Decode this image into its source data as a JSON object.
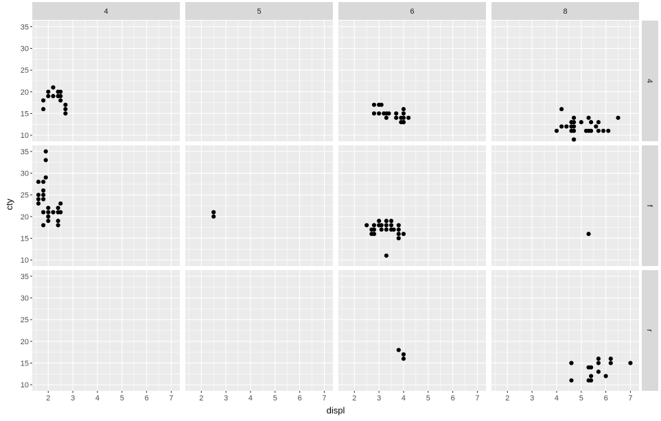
{
  "chart_data": {
    "type": "scatter",
    "xlabel": "displ",
    "ylabel": "cty",
    "xlim": [
      1.35,
      7.35
    ],
    "ylim": [
      8.6,
      36.4
    ],
    "x_ticks": [
      2,
      3,
      4,
      5,
      6,
      7
    ],
    "y_ticks": [
      10,
      15,
      20,
      25,
      30,
      35
    ],
    "facet_cols": [
      "4",
      "5",
      "6",
      "8"
    ],
    "facet_rows": [
      "4",
      "f",
      "r"
    ],
    "colors": {
      "panel": "#ebebeb",
      "strip": "#d9d9d9",
      "grid": "#ffffff",
      "point": "#000000"
    },
    "panels": [
      {
        "row": "4",
        "col": "4",
        "points": [
          [
            1.8,
            18
          ],
          [
            1.8,
            16
          ],
          [
            2.0,
            20
          ],
          [
            2.0,
            19
          ],
          [
            2.2,
            21
          ],
          [
            2.2,
            19
          ],
          [
            2.4,
            20
          ],
          [
            2.4,
            19
          ],
          [
            2.5,
            20
          ],
          [
            2.5,
            19
          ],
          [
            2.5,
            18
          ],
          [
            2.7,
            17
          ],
          [
            2.7,
            16
          ],
          [
            2.7,
            15
          ]
        ]
      },
      {
        "row": "4",
        "col": "5",
        "points": []
      },
      {
        "row": "4",
        "col": "6",
        "points": [
          [
            2.8,
            17
          ],
          [
            2.8,
            15
          ],
          [
            3.0,
            17
          ],
          [
            3.0,
            15
          ],
          [
            3.1,
            17
          ],
          [
            3.2,
            15
          ],
          [
            3.3,
            14
          ],
          [
            3.3,
            15
          ],
          [
            3.4,
            15
          ],
          [
            3.7,
            15
          ],
          [
            3.7,
            14
          ],
          [
            3.9,
            14
          ],
          [
            4.0,
            16
          ],
          [
            4.0,
            15
          ],
          [
            4.0,
            14
          ],
          [
            4.0,
            13
          ],
          [
            4.2,
            14
          ],
          [
            3.9,
            13
          ],
          [
            4.0,
            13
          ]
        ]
      },
      {
        "row": "4",
        "col": "8",
        "points": [
          [
            4.0,
            11
          ],
          [
            4.2,
            16
          ],
          [
            4.2,
            12
          ],
          [
            4.4,
            12
          ],
          [
            4.6,
            13
          ],
          [
            4.6,
            12
          ],
          [
            4.6,
            11
          ],
          [
            4.7,
            14
          ],
          [
            4.7,
            13
          ],
          [
            4.7,
            12
          ],
          [
            4.7,
            11
          ],
          [
            4.7,
            9
          ],
          [
            4.7,
            9
          ],
          [
            5.0,
            13
          ],
          [
            5.2,
            11
          ],
          [
            5.3,
            14
          ],
          [
            5.3,
            11
          ],
          [
            5.4,
            13
          ],
          [
            5.4,
            11
          ],
          [
            5.6,
            12
          ],
          [
            5.7,
            13
          ],
          [
            5.7,
            11
          ],
          [
            5.9,
            11
          ],
          [
            6.1,
            11
          ],
          [
            6.5,
            14
          ]
        ]
      },
      {
        "row": "f",
        "col": "4",
        "points": [
          [
            1.6,
            28
          ],
          [
            1.6,
            24
          ],
          [
            1.6,
            25
          ],
          [
            1.6,
            23
          ],
          [
            1.8,
            28
          ],
          [
            1.8,
            26
          ],
          [
            1.8,
            25
          ],
          [
            1.8,
            24
          ],
          [
            1.8,
            21
          ],
          [
            1.8,
            18
          ],
          [
            1.9,
            35
          ],
          [
            1.9,
            33
          ],
          [
            1.9,
            29
          ],
          [
            2.0,
            22
          ],
          [
            2.0,
            21
          ],
          [
            2.0,
            20
          ],
          [
            2.0,
            19
          ],
          [
            2.2,
            21
          ],
          [
            2.4,
            22
          ],
          [
            2.4,
            21
          ],
          [
            2.4,
            19
          ],
          [
            2.4,
            18
          ],
          [
            2.5,
            23
          ],
          [
            2.5,
            21
          ]
        ]
      },
      {
        "row": "f",
        "col": "5",
        "points": [
          [
            2.5,
            21
          ],
          [
            2.5,
            20
          ]
        ]
      },
      {
        "row": "f",
        "col": "6",
        "points": [
          [
            2.5,
            18
          ],
          [
            2.7,
            17
          ],
          [
            2.7,
            16
          ],
          [
            2.8,
            18
          ],
          [
            2.8,
            17
          ],
          [
            2.8,
            16
          ],
          [
            3.0,
            19
          ],
          [
            3.0,
            18
          ],
          [
            3.1,
            18
          ],
          [
            3.1,
            17
          ],
          [
            3.3,
            19
          ],
          [
            3.3,
            18
          ],
          [
            3.3,
            17
          ],
          [
            3.3,
            11
          ],
          [
            3.5,
            19
          ],
          [
            3.5,
            18
          ],
          [
            3.5,
            17
          ],
          [
            3.6,
            17
          ],
          [
            3.8,
            18
          ],
          [
            3.8,
            17
          ],
          [
            3.8,
            16
          ],
          [
            3.8,
            15
          ],
          [
            4.0,
            16
          ]
        ]
      },
      {
        "row": "f",
        "col": "8",
        "points": [
          [
            5.3,
            16
          ]
        ]
      },
      {
        "row": "r",
        "col": "4",
        "points": []
      },
      {
        "row": "r",
        "col": "5",
        "points": []
      },
      {
        "row": "r",
        "col": "6",
        "points": [
          [
            3.8,
            18
          ],
          [
            4.0,
            17
          ],
          [
            4.0,
            16
          ]
        ]
      },
      {
        "row": "r",
        "col": "8",
        "points": [
          [
            4.6,
            15
          ],
          [
            4.6,
            15
          ],
          [
            4.6,
            11
          ],
          [
            5.3,
            14
          ],
          [
            5.3,
            11
          ],
          [
            5.4,
            14
          ],
          [
            5.4,
            12
          ],
          [
            5.4,
            11
          ],
          [
            5.7,
            16
          ],
          [
            5.7,
            15
          ],
          [
            5.7,
            13
          ],
          [
            6.0,
            12
          ],
          [
            6.2,
            16
          ],
          [
            6.2,
            15
          ],
          [
            7.0,
            15
          ]
        ]
      }
    ]
  }
}
